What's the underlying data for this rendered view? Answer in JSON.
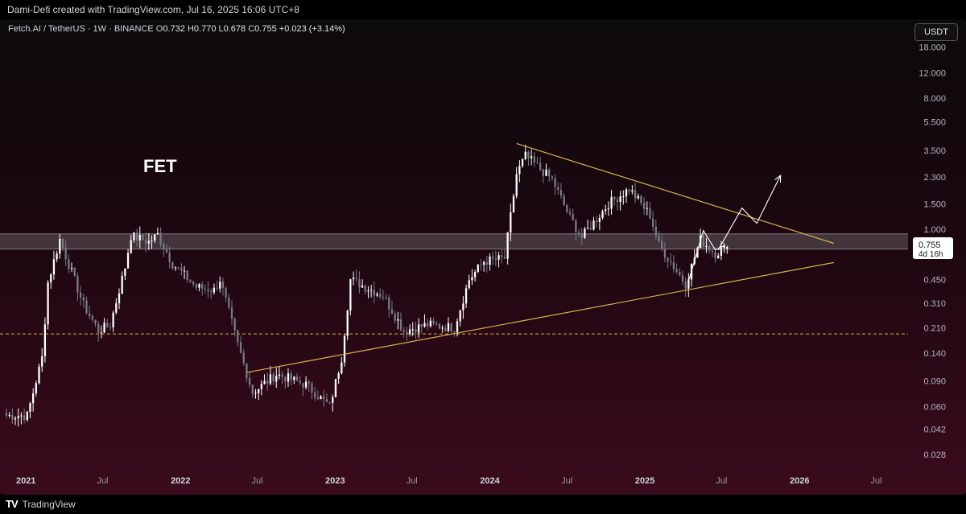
{
  "header": {
    "caption": "Dami-Defi created with TradingView.com, Jul 16, 2025 16:06 UTC+8"
  },
  "legend": {
    "symbol": "Fetch.AI / TetherUS · 1W · BINANCE",
    "open_label": "O",
    "open": "0.732",
    "high_label": "H",
    "high": "0.770",
    "low_label": "L",
    "low": "0.678",
    "close_label": "C",
    "close": "0.755",
    "change": "+0.023 (+3.14%)"
  },
  "currency_button": "USDT",
  "footer": {
    "brand_mark": "TV",
    "brand_name": "TradingView"
  },
  "colors": {
    "bull": "#ffffff",
    "bear": "#787b86",
    "trendline": "#d7b44a",
    "support_dashed": "#d7b44a",
    "zone": "#8a8a8a",
    "annotation": "#ffffff"
  },
  "chart_data": {
    "type": "candlestick",
    "title": "FET",
    "scale": "log",
    "ylim": [
      0.022,
      28
    ],
    "xlim": [
      "2020-11-16",
      "2026-09-14"
    ],
    "grid": false,
    "y_ticks": [
      "18.000",
      "12.000",
      "8.000",
      "5.500",
      "3.500",
      "2.300",
      "1.500",
      "1.000",
      "0.755",
      "0.450",
      "0.310",
      "0.210",
      "0.140",
      "0.090",
      "0.060",
      "0.042",
      "0.028"
    ],
    "x_ticks": [
      {
        "label": "2021",
        "date": "2021-01-01",
        "major": true
      },
      {
        "label": "Jul",
        "date": "2021-07-01",
        "major": false
      },
      {
        "label": "2022",
        "date": "2022-01-01",
        "major": true
      },
      {
        "label": "Jul",
        "date": "2022-07-01",
        "major": false
      },
      {
        "label": "2023",
        "date": "2023-01-01",
        "major": true
      },
      {
        "label": "Jul",
        "date": "2023-07-01",
        "major": false
      },
      {
        "label": "2024",
        "date": "2024-01-01",
        "major": true
      },
      {
        "label": "Jul",
        "date": "2024-07-01",
        "major": false
      },
      {
        "label": "2025",
        "date": "2025-01-01",
        "major": true
      },
      {
        "label": "Jul",
        "date": "2025-07-01",
        "major": false
      },
      {
        "label": "2026",
        "date": "2026-01-01",
        "major": true
      },
      {
        "label": "Jul",
        "date": "2026-07-01",
        "major": false
      }
    ],
    "price_label": {
      "value": 0.755,
      "text": "0.755",
      "countdown": "4d 16h"
    },
    "resistance_zone": [
      0.73,
      0.93
    ],
    "support_dashed": 0.19,
    "trendlines": [
      {
        "name": "upper-trendline",
        "from": {
          "date": "2024-03-04",
          "price": 3.9
        },
        "to": {
          "date": "2026-03-23",
          "price": 0.8
        }
      },
      {
        "name": "lower-trendline",
        "from": {
          "date": "2022-06-06",
          "price": 0.103
        },
        "to": {
          "date": "2026-03-23",
          "price": 0.59
        }
      }
    ],
    "projection_paths": [
      {
        "name": "projected-path",
        "points": [
          {
            "date": "2025-06-23",
            "price": 0.72
          },
          {
            "date": "2025-08-18",
            "price": 1.4
          },
          {
            "date": "2025-09-22",
            "price": 1.1
          },
          {
            "date": "2025-11-17",
            "price": 2.35
          }
        ]
      },
      {
        "name": "drawn-path",
        "points": [
          {
            "date": "2025-04-14",
            "price": 0.44
          },
          {
            "date": "2025-05-19",
            "price": 0.98
          },
          {
            "date": "2025-06-16",
            "price": 0.72
          },
          {
            "date": "2025-07-07",
            "price": 0.77
          }
        ]
      }
    ],
    "anchors": [
      {
        "date": "2020-11-16",
        "price": 0.052
      },
      {
        "date": "2021-01-04",
        "price": 0.052
      },
      {
        "date": "2021-02-08",
        "price": 0.13
      },
      {
        "date": "2021-02-22",
        "price": 0.43
      },
      {
        "date": "2021-03-22",
        "price": 0.85
      },
      {
        "date": "2021-05-17",
        "price": 0.3
      },
      {
        "date": "2021-06-21",
        "price": 0.2
      },
      {
        "date": "2021-07-19",
        "price": 0.22
      },
      {
        "date": "2021-08-23",
        "price": 0.55
      },
      {
        "date": "2021-09-06",
        "price": 0.9
      },
      {
        "date": "2021-10-18",
        "price": 0.82
      },
      {
        "date": "2021-11-08",
        "price": 0.92
      },
      {
        "date": "2021-12-13",
        "price": 0.58
      },
      {
        "date": "2022-02-07",
        "price": 0.4
      },
      {
        "date": "2022-03-21",
        "price": 0.38
      },
      {
        "date": "2022-04-04",
        "price": 0.45
      },
      {
        "date": "2022-05-16",
        "price": 0.16
      },
      {
        "date": "2022-06-20",
        "price": 0.075
      },
      {
        "date": "2022-08-15",
        "price": 0.1
      },
      {
        "date": "2022-10-24",
        "price": 0.085
      },
      {
        "date": "2022-12-19",
        "price": 0.06
      },
      {
        "date": "2023-01-16",
        "price": 0.13
      },
      {
        "date": "2023-02-06",
        "price": 0.45
      },
      {
        "date": "2023-03-13",
        "price": 0.4
      },
      {
        "date": "2023-04-24",
        "price": 0.35
      },
      {
        "date": "2023-06-12",
        "price": 0.2
      },
      {
        "date": "2023-08-07",
        "price": 0.22
      },
      {
        "date": "2023-10-09",
        "price": 0.21
      },
      {
        "date": "2023-11-13",
        "price": 0.45
      },
      {
        "date": "2023-12-18",
        "price": 0.6
      },
      {
        "date": "2024-02-05",
        "price": 0.63
      },
      {
        "date": "2024-03-04",
        "price": 2.4
      },
      {
        "date": "2024-03-25",
        "price": 3.2
      },
      {
        "date": "2024-05-27",
        "price": 2.2
      },
      {
        "date": "2024-07-08",
        "price": 1.2
      },
      {
        "date": "2024-08-05",
        "price": 0.88
      },
      {
        "date": "2024-10-07",
        "price": 1.5
      },
      {
        "date": "2024-11-25",
        "price": 1.9
      },
      {
        "date": "2025-01-13",
        "price": 1.25
      },
      {
        "date": "2025-02-03",
        "price": 0.78
      },
      {
        "date": "2025-04-07",
        "price": 0.42
      },
      {
        "date": "2025-05-12",
        "price": 0.85
      },
      {
        "date": "2025-06-16",
        "price": 0.68
      },
      {
        "date": "2025-07-14",
        "price": 0.755
      }
    ],
    "last": {
      "open": 0.732,
      "high": 0.77,
      "low": 0.678,
      "close": 0.755
    }
  }
}
